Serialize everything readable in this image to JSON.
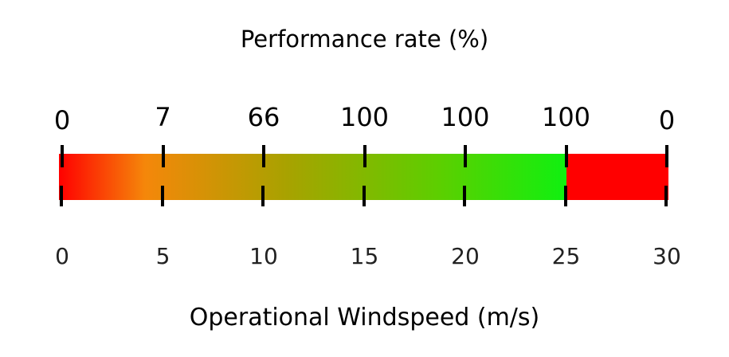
{
  "title": "Performance rate (%)",
  "xlabel": "Operational Windspeed (m/s)",
  "chart_data": {
    "type": "heatmap",
    "title": "Performance rate (%)",
    "xlabel": "Operational Windspeed (m/s)",
    "x": [
      0,
      5,
      10,
      15,
      20,
      25,
      30
    ],
    "performance_labels": [
      "0",
      "7",
      "66",
      "100",
      "100",
      "100",
      "0"
    ],
    "windspeed_labels": [
      "0",
      "5",
      "10",
      "15",
      "20",
      "25",
      "30"
    ],
    "xlim": [
      0,
      30
    ],
    "colors": {
      "low": "#ff0000",
      "mid": "#f5870a",
      "high": "#10f010",
      "cutout": "#ff0000"
    }
  }
}
